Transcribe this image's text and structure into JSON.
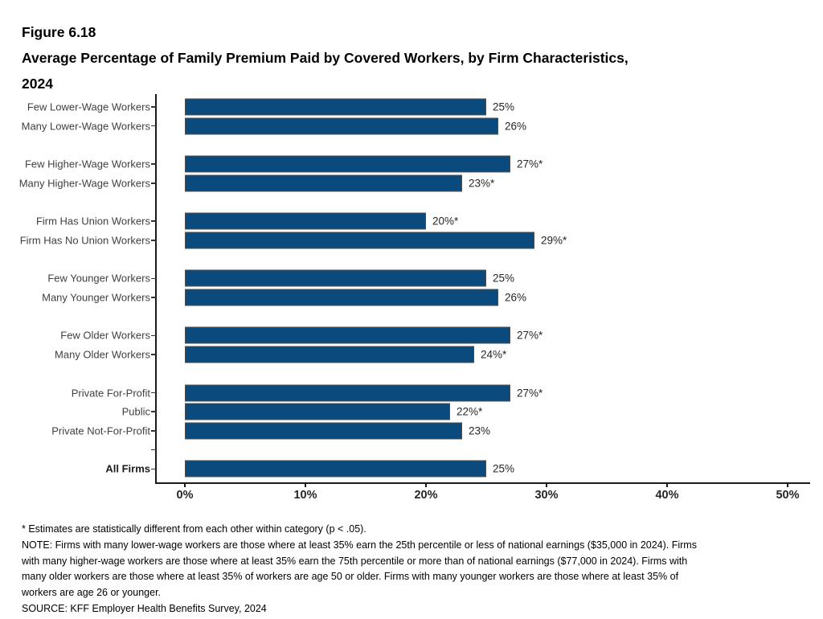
{
  "header": {
    "figure_number": "Figure 6.18",
    "subtitle_lines": [
      "Average Percentage of Family Premium Paid by Covered Workers, by Firm Characteristics,",
      "2024"
    ]
  },
  "chart_data": {
    "type": "bar",
    "orientation": "horizontal",
    "title": "Figure 6.18 Average Percentage of Family Premium Paid by Covered Workers, by Firm Characteristics, 2024",
    "xlabel": "",
    "ylabel": "",
    "xlim": [
      0,
      50
    ],
    "grid": false,
    "bar_color": "#0a4a7c",
    "bar_border_color": "#4d4d4d",
    "rows": [
      {
        "label": "Few Lower-Wage Workers",
        "value": 25,
        "display": "25%",
        "group": 0,
        "bold": false
      },
      {
        "label": "Many Lower-Wage Workers",
        "value": 26,
        "display": "26%",
        "group": 0,
        "bold": false
      },
      {
        "label": "Few Higher-Wage Workers",
        "value": 27,
        "display": "27%*",
        "group": 1,
        "bold": false
      },
      {
        "label": "Many Higher-Wage Workers",
        "value": 23,
        "display": "23%*",
        "group": 1,
        "bold": false
      },
      {
        "label": "Firm Has Union Workers",
        "value": 20,
        "display": "20%*",
        "group": 2,
        "bold": false
      },
      {
        "label": "Firm Has No Union Workers",
        "value": 29,
        "display": "29%*",
        "group": 2,
        "bold": false
      },
      {
        "label": "Few Younger Workers",
        "value": 25,
        "display": "25%",
        "group": 3,
        "bold": false
      },
      {
        "label": "Many Younger Workers",
        "value": 26,
        "display": "26%",
        "group": 3,
        "bold": false
      },
      {
        "label": "Few Older Workers",
        "value": 27,
        "display": "27%*",
        "group": 4,
        "bold": false
      },
      {
        "label": "Many Older Workers",
        "value": 24,
        "display": "24%*",
        "group": 4,
        "bold": false
      },
      {
        "label": "Private For-Profit",
        "value": 27,
        "display": "27%*",
        "group": 5,
        "bold": false
      },
      {
        "label": "Public",
        "value": 22,
        "display": "22%*",
        "group": 5,
        "bold": false
      },
      {
        "label": "Private Not-For-Profit",
        "value": 23,
        "display": "23%",
        "group": 5,
        "bold": false
      },
      {
        "label": "All Firms",
        "value": 25,
        "display": "25%",
        "group": 6,
        "bold": true
      }
    ],
    "x_axis": {
      "ticks": [
        {
          "label": "0%",
          "value": 0
        },
        {
          "label": "10%",
          "value": 10
        },
        {
          "label": "20%",
          "value": 20
        },
        {
          "label": "30%",
          "value": 30
        },
        {
          "label": "40%",
          "value": 40
        },
        {
          "label": "50%",
          "value": 50
        }
      ]
    }
  },
  "footnotes": [
    "* Estimates are statistically different from each other within category (p < .05).",
    "NOTE: Firms with many lower-wage workers are those where at least 35% earn the 25th percentile or less of national earnings ($35,000 in 2024). Firms",
    "with many higher-wage workers are those where at least 35% earn the 75th percentile or more than of national earnings ($77,000 in 2024). Firms with",
    "many older workers are those where at least 35% of workers are age 50 or older. Firms with many younger workers are those where at least 35% of",
    "workers are age 26 or younger.",
    "SOURCE: KFF Employer Health Benefits Survey, 2024"
  ]
}
